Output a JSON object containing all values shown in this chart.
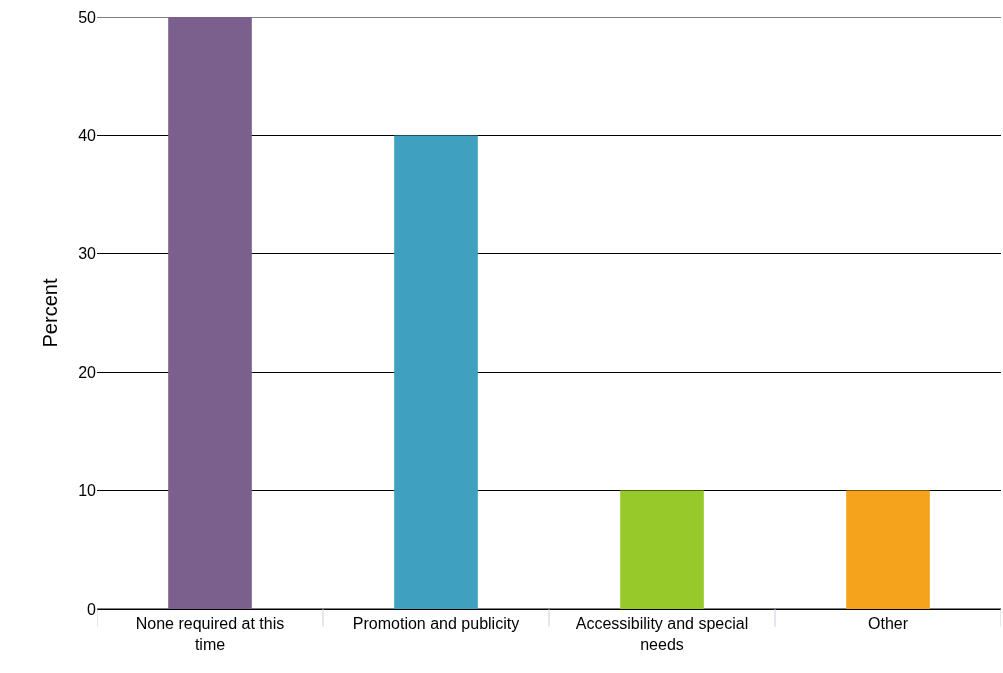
{
  "chart_data": {
    "type": "bar",
    "ylabel": "Percent",
    "categories": [
      "None required at this time",
      "Promotion and publicity",
      "Accessibility and special needs",
      "Other"
    ],
    "values": [
      50,
      40,
      10,
      10
    ],
    "colors": [
      "#7b5f8c",
      "#3fa0c0",
      "#97c92b",
      "#f5a31c"
    ],
    "ylim": [
      0,
      50
    ],
    "yticks": [
      0,
      10,
      20,
      30,
      40,
      50
    ],
    "grid": "y"
  }
}
